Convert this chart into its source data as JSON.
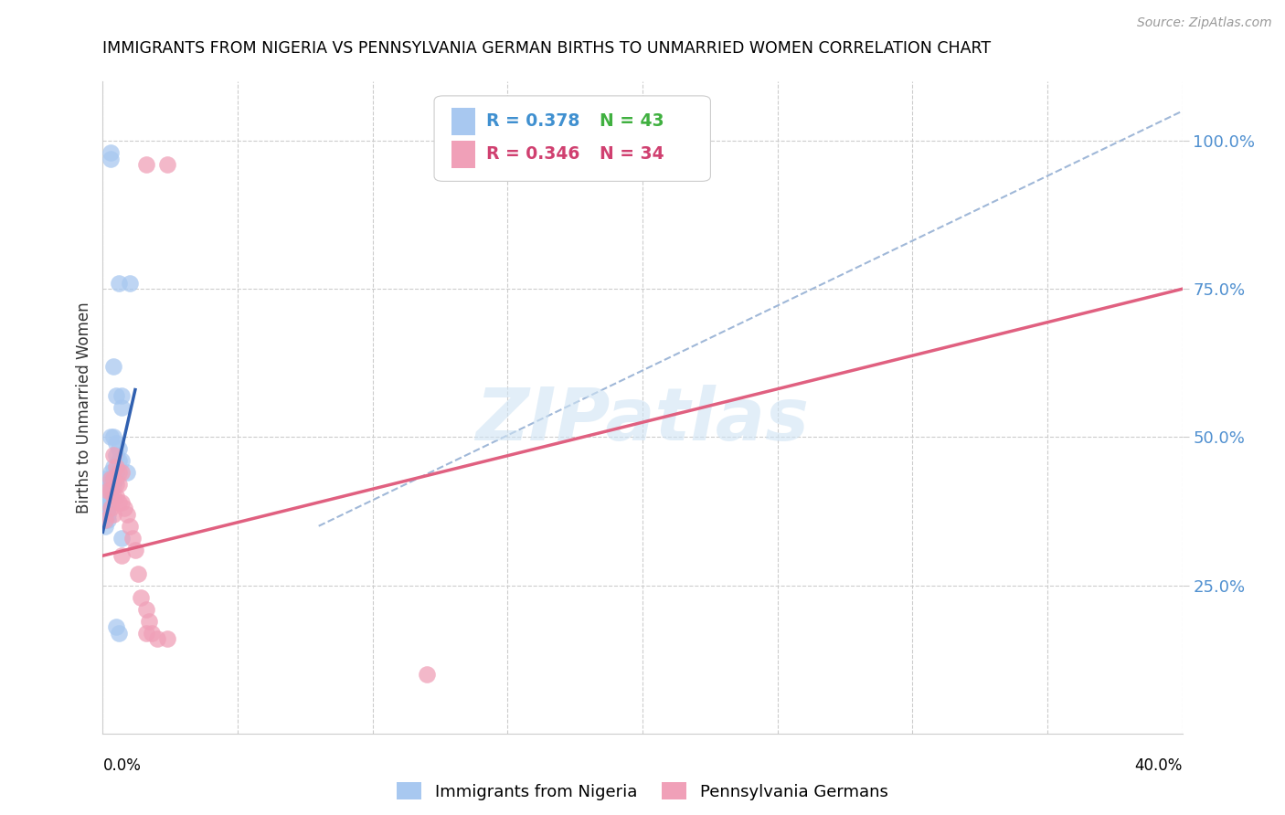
{
  "title": "IMMIGRANTS FROM NIGERIA VS PENNSYLVANIA GERMAN BIRTHS TO UNMARRIED WOMEN CORRELATION CHART",
  "source": "Source: ZipAtlas.com",
  "ylabel": "Births to Unmarried Women",
  "legend_blue_r": "R = 0.378",
  "legend_blue_n": "N = 43",
  "legend_pink_r": "R = 0.346",
  "legend_pink_n": "N = 34",
  "legend_blue_label": "Immigrants from Nigeria",
  "legend_pink_label": "Pennsylvania Germans",
  "watermark": "ZIPatlas",
  "blue_color": "#a8c8f0",
  "pink_color": "#f0a0b8",
  "blue_line_color": "#3060b0",
  "pink_line_color": "#e06080",
  "dashed_line_color": "#a0b8d8",
  "blue_r_color": "#4090d0",
  "blue_n_color": "#40b040",
  "pink_r_color": "#d04070",
  "pink_n_color": "#d04070",
  "right_axis_color": "#5090d0",
  "blue_scatter": [
    [
      0.003,
      0.97
    ],
    [
      0.003,
      0.98
    ],
    [
      0.006,
      0.76
    ],
    [
      0.01,
      0.76
    ],
    [
      0.004,
      0.62
    ],
    [
      0.005,
      0.57
    ],
    [
      0.007,
      0.55
    ],
    [
      0.007,
      0.57
    ],
    [
      0.003,
      0.5
    ],
    [
      0.004,
      0.5
    ],
    [
      0.005,
      0.49
    ],
    [
      0.006,
      0.48
    ],
    [
      0.005,
      0.47
    ],
    [
      0.006,
      0.46
    ],
    [
      0.007,
      0.46
    ],
    [
      0.004,
      0.45
    ],
    [
      0.005,
      0.44
    ],
    [
      0.003,
      0.43
    ],
    [
      0.004,
      0.43
    ],
    [
      0.005,
      0.43
    ],
    [
      0.002,
      0.42
    ],
    [
      0.003,
      0.42
    ],
    [
      0.004,
      0.42
    ],
    [
      0.002,
      0.41
    ],
    [
      0.003,
      0.41
    ],
    [
      0.001,
      0.4
    ],
    [
      0.002,
      0.4
    ],
    [
      0.003,
      0.4
    ],
    [
      0.001,
      0.39
    ],
    [
      0.002,
      0.39
    ],
    [
      0.001,
      0.38
    ],
    [
      0.002,
      0.38
    ],
    [
      0.001,
      0.37
    ],
    [
      0.002,
      0.37
    ],
    [
      0.001,
      0.36
    ],
    [
      0.001,
      0.35
    ],
    [
      0.007,
      0.33
    ],
    [
      0.005,
      0.18
    ],
    [
      0.006,
      0.17
    ],
    [
      0.001,
      0.43
    ],
    [
      0.003,
      0.44
    ],
    [
      0.009,
      0.44
    ],
    [
      0.002,
      0.36
    ]
  ],
  "pink_scatter": [
    [
      0.016,
      0.96
    ],
    [
      0.024,
      0.96
    ],
    [
      0.004,
      0.47
    ],
    [
      0.005,
      0.45
    ],
    [
      0.006,
      0.44
    ],
    [
      0.007,
      0.44
    ],
    [
      0.003,
      0.43
    ],
    [
      0.004,
      0.43
    ],
    [
      0.005,
      0.42
    ],
    [
      0.006,
      0.42
    ],
    [
      0.002,
      0.41
    ],
    [
      0.003,
      0.41
    ],
    [
      0.004,
      0.4
    ],
    [
      0.005,
      0.4
    ],
    [
      0.006,
      0.39
    ],
    [
      0.007,
      0.39
    ],
    [
      0.008,
      0.38
    ],
    [
      0.003,
      0.38
    ],
    [
      0.009,
      0.37
    ],
    [
      0.004,
      0.37
    ],
    [
      0.001,
      0.36
    ],
    [
      0.01,
      0.35
    ],
    [
      0.011,
      0.33
    ],
    [
      0.012,
      0.31
    ],
    [
      0.007,
      0.3
    ],
    [
      0.013,
      0.27
    ],
    [
      0.014,
      0.23
    ],
    [
      0.016,
      0.21
    ],
    [
      0.017,
      0.19
    ],
    [
      0.018,
      0.17
    ],
    [
      0.016,
      0.17
    ],
    [
      0.02,
      0.16
    ],
    [
      0.024,
      0.16
    ],
    [
      0.12,
      0.1
    ]
  ],
  "xmin": 0.0,
  "xmax": 0.4,
  "ymin": 0.0,
  "ymax": 1.1
}
